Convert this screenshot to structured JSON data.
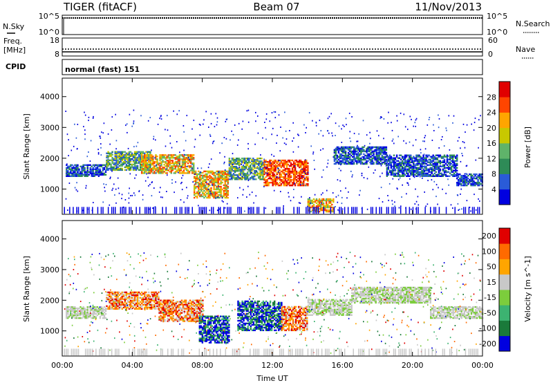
{
  "header": {
    "radar": "TIGER (fitACF)",
    "beam": "Beam 07",
    "date": "11/Nov/2013"
  },
  "strip": {
    "nsky_label": "N.Sky",
    "nsearch_label": "N.Search",
    "nsky_ticks": [
      "10^5",
      "10^0"
    ],
    "nsearch_ticks": [
      "10^5",
      "10^0"
    ],
    "freq_label": "Freq.",
    "freq_unit": "[MHz]",
    "freq_ticks": [
      "18",
      "8"
    ],
    "nave_label": "Nave",
    "nave_ticks": [
      "60",
      "0"
    ],
    "cpid_label": "CPID",
    "cpid_value": "normal (fast) 151"
  },
  "chart_data": [
    {
      "type": "heatmap",
      "name": "power",
      "ylabel": "Slant Range [km]",
      "xlabel": "",
      "xlim": [
        0,
        24
      ],
      "ylim": [
        180,
        4600
      ],
      "yticks": [
        "1000",
        "2000",
        "3000",
        "4000"
      ],
      "xticks": [
        "00:00",
        "04:00",
        "08:00",
        "12:00",
        "16:00",
        "20:00",
        "00:00"
      ],
      "colorbar": {
        "label": "Power [dB]",
        "ticks": [
          "4",
          "8",
          "12",
          "16",
          "20",
          "24",
          "28"
        ],
        "colors": [
          "#0000e0",
          "#2a5bd8",
          "#2e8b57",
          "#5fb36a",
          "#c8c800",
          "#ffa500",
          "#ff4500",
          "#e00000"
        ]
      },
      "features": [
        {
          "t0": 0.2,
          "t1": 2.5,
          "r0": 1400,
          "r1": 1800,
          "level": "low"
        },
        {
          "t0": 2.5,
          "t1": 5.0,
          "r0": 1600,
          "r1": 2200,
          "level": "mid"
        },
        {
          "t0": 4.5,
          "t1": 7.5,
          "r0": 1500,
          "r1": 2100,
          "level": "high"
        },
        {
          "t0": 7.5,
          "t1": 9.5,
          "r0": 700,
          "r1": 1600,
          "level": "high"
        },
        {
          "t0": 9.5,
          "t1": 11.5,
          "r0": 1300,
          "r1": 2000,
          "level": "mid"
        },
        {
          "t0": 11.5,
          "t1": 14.0,
          "r0": 1100,
          "r1": 1950,
          "level": "peak"
        },
        {
          "t0": 14.0,
          "t1": 15.5,
          "r0": 250,
          "r1": 700,
          "level": "high"
        },
        {
          "t0": 15.5,
          "t1": 18.5,
          "r0": 1800,
          "r1": 2350,
          "level": "low"
        },
        {
          "t0": 18.5,
          "t1": 22.5,
          "r0": 1400,
          "r1": 2100,
          "level": "low"
        },
        {
          "t0": 22.5,
          "t1": 24.0,
          "r0": 1100,
          "r1": 1500,
          "level": "low"
        }
      ]
    },
    {
      "type": "heatmap",
      "name": "velocity",
      "ylabel": "Slant Range [km]",
      "xlabel": "Time UT",
      "xlim": [
        0,
        24
      ],
      "ylim": [
        180,
        4600
      ],
      "yticks": [
        "1000",
        "2000",
        "3000",
        "4000"
      ],
      "xticks": [
        "00:00",
        "04:00",
        "08:00",
        "12:00",
        "16:00",
        "20:00",
        "00:00"
      ],
      "colorbar": {
        "label": "Velocity [m s^-1]",
        "ticks": [
          "200",
          "100",
          "50",
          "15",
          "-15",
          "-50",
          "-100",
          "-200"
        ],
        "colors": [
          "#0000e0",
          "#1a7a3a",
          "#3cb371",
          "#7ccd3c",
          "#c8c8c8",
          "#ffa500",
          "#ff6a00",
          "#e00000"
        ]
      },
      "features": [
        {
          "t0": 0.2,
          "t1": 2.5,
          "r0": 1400,
          "r1": 1800,
          "level": "ground"
        },
        {
          "t0": 2.5,
          "t1": 5.5,
          "r0": 1700,
          "r1": 2250,
          "level": "neg"
        },
        {
          "t0": 5.5,
          "t1": 8.0,
          "r0": 1300,
          "r1": 2000,
          "level": "neg"
        },
        {
          "t0": 7.8,
          "t1": 9.5,
          "r0": 600,
          "r1": 1500,
          "level": "pos"
        },
        {
          "t0": 10.0,
          "t1": 12.5,
          "r0": 1000,
          "r1": 1950,
          "level": "pos"
        },
        {
          "t0": 12.5,
          "t1": 14.0,
          "r0": 1000,
          "r1": 1800,
          "level": "neg"
        },
        {
          "t0": 14.0,
          "t1": 16.5,
          "r0": 1500,
          "r1": 2000,
          "level": "ground"
        },
        {
          "t0": 16.5,
          "t1": 21.0,
          "r0": 1900,
          "r1": 2400,
          "level": "ground"
        },
        {
          "t0": 21.0,
          "t1": 24.0,
          "r0": 1400,
          "r1": 1800,
          "level": "ground"
        }
      ]
    }
  ]
}
